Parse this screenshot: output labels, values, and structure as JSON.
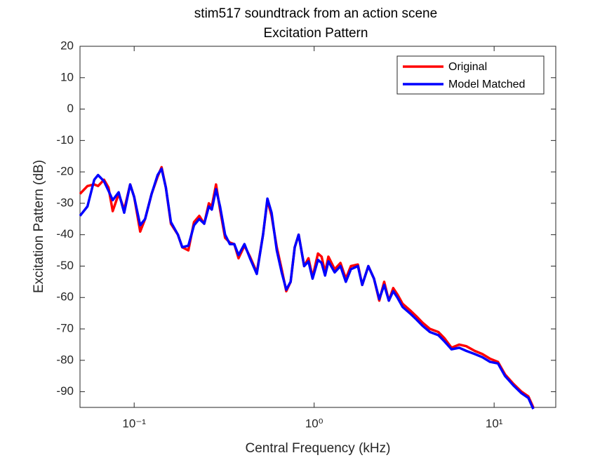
{
  "chart_data": {
    "type": "line",
    "title": "stim517 soundtrack from an action scene",
    "subtitle": "Excitation Pattern",
    "x_label": "Central Frequency (kHz)",
    "y_label": "Excitation Pattern (dB)",
    "x_scale": "log",
    "xlim": [
      0.05,
      22
    ],
    "ylim": [
      -95,
      20
    ],
    "xticks": [
      {
        "value": 0.1,
        "label": "10⁻¹"
      },
      {
        "value": 1,
        "label": "10⁰"
      },
      {
        "value": 10,
        "label": "10¹"
      }
    ],
    "yticks": [
      -90,
      -80,
      -70,
      -60,
      -50,
      -40,
      -30,
      -20,
      -10,
      0,
      10,
      20
    ],
    "grid": false,
    "legend": "top-right",
    "x": [
      0.05,
      0.055,
      0.06,
      0.063,
      0.068,
      0.072,
      0.076,
      0.082,
      0.088,
      0.095,
      0.1,
      0.108,
      0.115,
      0.125,
      0.135,
      0.142,
      0.15,
      0.16,
      0.175,
      0.185,
      0.2,
      0.215,
      0.23,
      0.245,
      0.26,
      0.27,
      0.285,
      0.3,
      0.32,
      0.34,
      0.36,
      0.38,
      0.41,
      0.44,
      0.48,
      0.52,
      0.55,
      0.58,
      0.62,
      0.66,
      0.7,
      0.74,
      0.78,
      0.82,
      0.88,
      0.93,
      0.98,
      1.05,
      1.1,
      1.15,
      1.2,
      1.3,
      1.4,
      1.5,
      1.6,
      1.75,
      1.85,
      2.0,
      2.15,
      2.3,
      2.45,
      2.6,
      2.75,
      2.9,
      3.1,
      3.4,
      3.7,
      4.0,
      4.4,
      4.9,
      5.3,
      5.8,
      6.4,
      7.0,
      7.8,
      8.6,
      9.5,
      10.5,
      11.5,
      12.8,
      14.2,
      15.5,
      16.5
    ],
    "series": [
      {
        "name": "Original",
        "color": "#ff0000",
        "values": [
          -27,
          -24.5,
          -24,
          -24.5,
          -22.5,
          -25,
          -32.5,
          -27,
          -32,
          -24,
          -28,
          -39,
          -35,
          -27,
          -21.5,
          -18.5,
          -25,
          -36.5,
          -40,
          -44,
          -45,
          -36,
          -34,
          -36.5,
          -30,
          -31,
          -24,
          -32,
          -41,
          -42.5,
          -43,
          -47.5,
          -43.5,
          -47,
          -52,
          -40,
          -29,
          -34,
          -44,
          -51,
          -58,
          -55,
          -44,
          -40,
          -50,
          -47.5,
          -53.5,
          -46,
          -47,
          -52,
          -47,
          -51,
          -49,
          -54,
          -50,
          -49.5,
          -56,
          -50,
          -54,
          -61,
          -55,
          -61,
          -57,
          -59,
          -62,
          -64,
          -66,
          -68,
          -70,
          -71,
          -73,
          -76,
          -75,
          -75.5,
          -77,
          -78,
          -79.5,
          -80.5,
          -84.5,
          -87.5,
          -90,
          -91.5,
          -95
        ]
      },
      {
        "name": "Model Matched",
        "color": "#0000ff",
        "values": [
          -34,
          -31,
          -22.5,
          -21,
          -23,
          -26,
          -29,
          -26.5,
          -33,
          -24,
          -28,
          -37,
          -35,
          -27,
          -21,
          -19,
          -25,
          -36,
          -40,
          -44,
          -43.5,
          -37,
          -35,
          -36.5,
          -31,
          -32,
          -25.5,
          -31,
          -40,
          -43,
          -43,
          -46.5,
          -43,
          -47.5,
          -52.5,
          -40,
          -28.5,
          -33,
          -45,
          -52,
          -57.5,
          -55,
          -44,
          -40,
          -50,
          -48.5,
          -54,
          -48,
          -49,
          -53,
          -48.5,
          -52,
          -50,
          -55,
          -51,
          -50,
          -56,
          -50,
          -54,
          -60.5,
          -56,
          -61,
          -58,
          -60,
          -63,
          -65,
          -67,
          -69,
          -71,
          -72,
          -74,
          -76.5,
          -76,
          -77,
          -78,
          -79,
          -80.5,
          -81,
          -85,
          -88,
          -90.5,
          -92,
          -95.5
        ]
      }
    ]
  }
}
